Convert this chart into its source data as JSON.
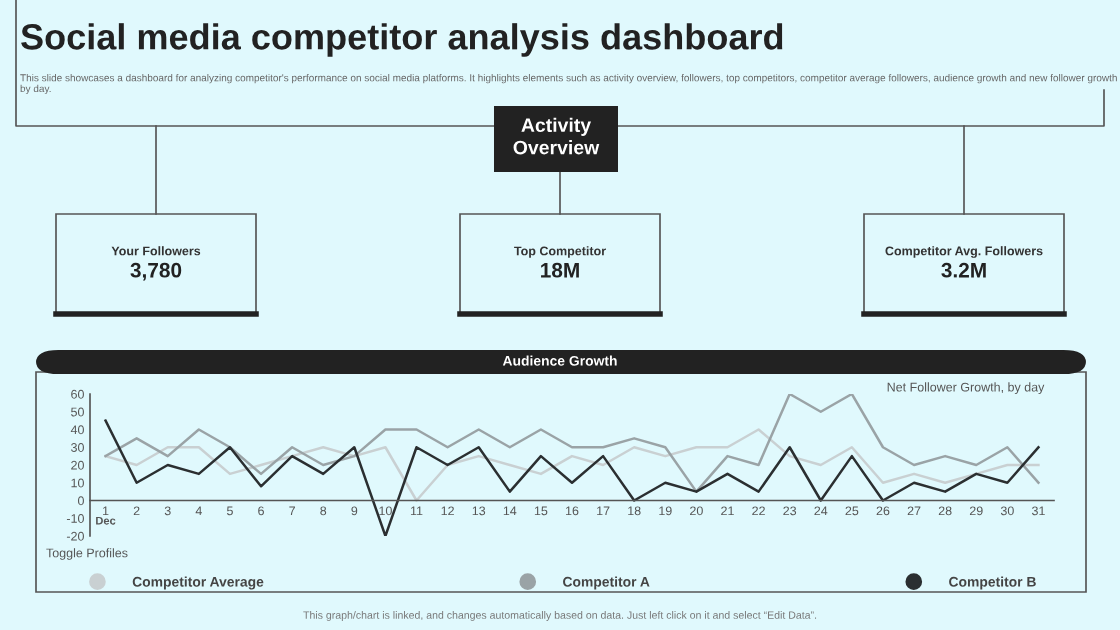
{
  "chart_data": {
    "type": "line",
    "title": "Social media competitor analysis dashboard",
    "subtitle": "This slide showcases a dashboard for analyzing competitor's performance on social media platforms. It highlights elements such as activity overview, followers, top competitors, competitor average followers, audience growth and new follower growth by day.",
    "categories": [
      "1",
      "2",
      "3",
      "4",
      "5",
      "6",
      "7",
      "8",
      "9",
      "10",
      "11",
      "12",
      "13",
      "14",
      "15",
      "16",
      "17",
      "18",
      "19",
      "20",
      "21",
      "22",
      "23",
      "24",
      "25",
      "26",
      "27",
      "28",
      "29",
      "30",
      "31"
    ],
    "series": [
      {
        "name": "Competitor Average",
        "color": "#c9d0d2",
        "values": [
          25,
          20,
          30,
          30,
          15,
          20,
          25,
          30,
          25,
          30,
          0,
          20,
          25,
          20,
          15,
          25,
          20,
          30,
          25,
          30,
          30,
          40,
          25,
          20,
          30,
          10,
          15,
          10,
          15,
          20,
          20
        ]
      },
      {
        "name": "Competitor A",
        "color": "#9aa3a6",
        "values": [
          25,
          35,
          25,
          40,
          30,
          15,
          30,
          20,
          25,
          40,
          40,
          30,
          40,
          30,
          40,
          30,
          30,
          35,
          30,
          5,
          25,
          20,
          60,
          50,
          60,
          30,
          20,
          25,
          20,
          30,
          10
        ]
      },
      {
        "name": "Competitor B",
        "color": "#2b2f31",
        "values": [
          45,
          10,
          20,
          15,
          30,
          8,
          25,
          15,
          30,
          -20,
          30,
          20,
          30,
          5,
          25,
          10,
          25,
          0,
          10,
          5,
          15,
          5,
          30,
          0,
          25,
          0,
          10,
          5,
          15,
          10,
          30
        ]
      }
    ],
    "ylim": [
      -20,
      60
    ],
    "yticks": [
      -20,
      -10,
      0,
      10,
      20,
      30,
      40,
      50,
      60
    ],
    "grid": false,
    "legend": "bottom",
    "marker": "none",
    "line_style": "solid",
    "annotations": [
      "Activity Overview",
      "Your Followers",
      "3,780",
      "Top Competitor",
      "18M",
      "Competitor Avg. Followers",
      "3.2M",
      "Audience Growth",
      "Net Follower Growth, by day",
      "Dec",
      "Toggle Profiles",
      "This graph/chart is linked, and changes automatically based on data. Just left click on it and select “Edit Data”."
    ]
  }
}
